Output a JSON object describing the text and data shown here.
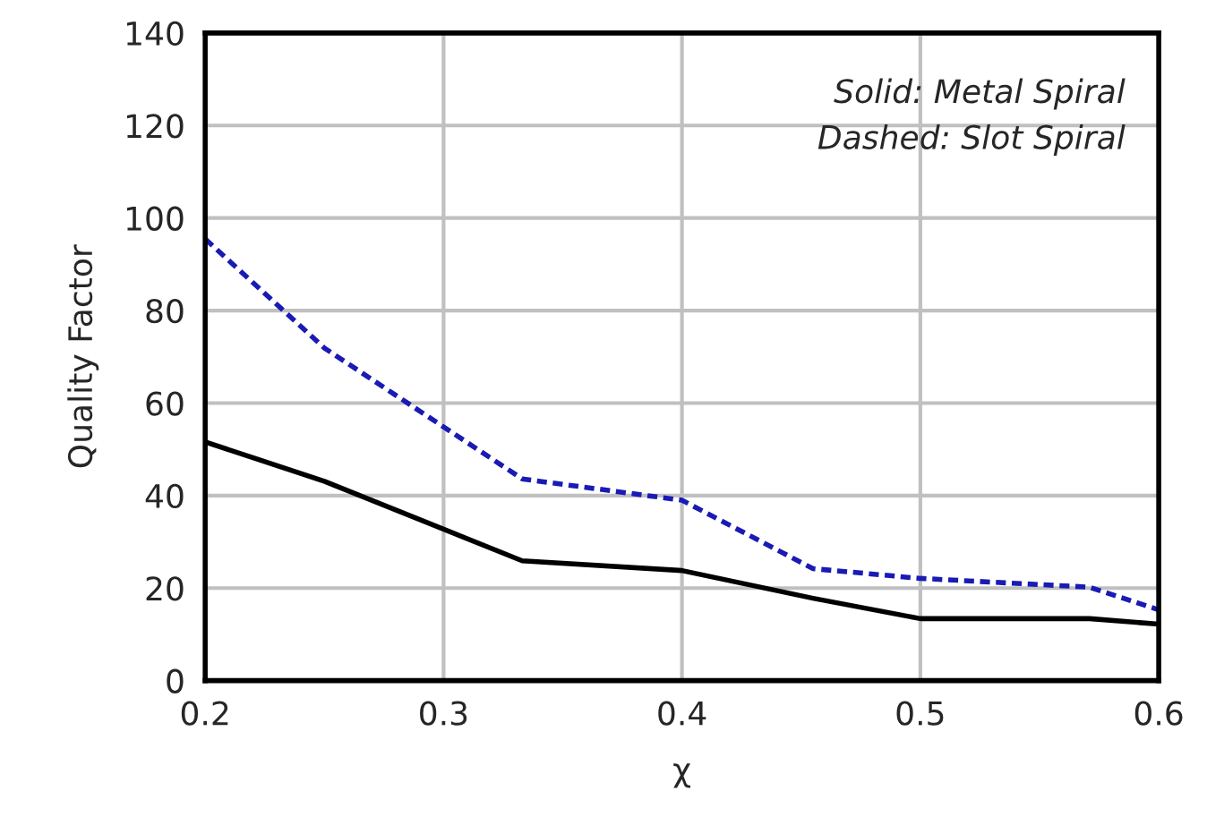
{
  "chart_data": {
    "type": "line",
    "xlabel": "χ",
    "ylabel": "Quality Factor",
    "x": [
      0.2,
      0.25,
      0.333,
      0.4,
      0.455,
      0.5,
      0.571,
      0.6
    ],
    "series": [
      {
        "color": "#000000",
        "line_style": "solid",
        "values": [
          51.6,
          43.1,
          25.9,
          23.8,
          17.8,
          13.4,
          13.4,
          12.2
        ]
      },
      {
        "color": "#1a1ab4",
        "line_style": "dotted",
        "values": [
          95.5,
          71.9,
          43.6,
          39.0,
          24.2,
          22.1,
          20.2,
          15.3
        ]
      }
    ],
    "xlim": [
      0.2,
      0.6
    ],
    "xticks": [
      0.2,
      0.3,
      0.4,
      0.5,
      0.6
    ],
    "ylim": [
      0,
      140
    ],
    "yticks": [
      0,
      20,
      40,
      60,
      80,
      100,
      120,
      140
    ],
    "grid": true,
    "marker": "none",
    "annotations": [
      "Solid: Metal Spiral\nDashed: Slot Spiral"
    ]
  }
}
